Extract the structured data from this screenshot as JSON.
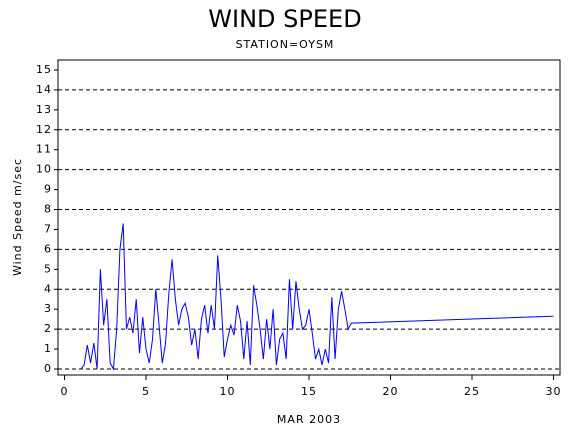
{
  "chart_data": {
    "type": "line",
    "title": "WIND SPEED",
    "subtitle": "STATION=OYSM",
    "y_label": "Wind Speed m/sec",
    "x_label": "MAR 2003",
    "xlim": [
      -0.4,
      30.4
    ],
    "xticks": [
      0,
      5,
      10,
      15,
      20,
      25,
      30
    ],
    "ylim": [
      -0.3,
      15.5
    ],
    "yticks": [
      0,
      1,
      2,
      3,
      4,
      5,
      6,
      7,
      8,
      9,
      10,
      11,
      12,
      13,
      14,
      15
    ],
    "grid": true,
    "x": [
      1.0,
      1.2,
      1.4,
      1.6,
      1.8,
      2.0,
      2.2,
      2.4,
      2.6,
      2.8,
      3.0,
      3.2,
      3.4,
      3.6,
      3.8,
      4.0,
      4.2,
      4.4,
      4.6,
      4.8,
      5.0,
      5.2,
      5.4,
      5.6,
      5.8,
      6.0,
      6.2,
      6.4,
      6.6,
      6.8,
      7.0,
      7.2,
      7.4,
      7.6,
      7.8,
      8.0,
      8.2,
      8.4,
      8.6,
      8.8,
      9.0,
      9.2,
      9.4,
      9.6,
      9.8,
      10.0,
      10.2,
      10.4,
      10.6,
      10.8,
      11.0,
      11.2,
      11.4,
      11.6,
      11.8,
      12.0,
      12.2,
      12.4,
      12.6,
      12.8,
      13.0,
      13.2,
      13.4,
      13.6,
      13.8,
      14.0,
      14.2,
      14.4,
      14.6,
      14.8,
      15.0,
      15.2,
      15.4,
      15.6,
      15.8,
      16.0,
      16.2,
      16.4,
      16.6,
      16.8,
      17.0,
      17.2,
      17.4,
      17.6,
      30
    ],
    "series": [
      {
        "color": "#0000ff",
        "values": [
          0,
          0.2,
          1.2,
          0.3,
          1.3,
          0,
          5.0,
          2.2,
          3.5,
          0.3,
          0,
          2.0,
          6.0,
          7.3,
          2.0,
          2.6,
          1.8,
          3.5,
          0.8,
          2.6,
          1.0,
          0.3,
          1.5,
          4.0,
          2.2,
          0.3,
          1.3,
          3.8,
          5.5,
          3.5,
          2.2,
          3.0,
          3.3,
          2.6,
          1.2,
          2.0,
          0.5,
          2.5,
          3.2,
          1.8,
          3.2,
          2.0,
          5.7,
          3.5,
          0.6,
          1.5,
          2.2,
          1.7,
          3.2,
          2.4,
          0.5,
          2.4,
          0.2,
          4.2,
          3.2,
          2.0,
          0.5,
          2.5,
          1.0,
          3.0,
          0.2,
          1.5,
          1.8,
          0.5,
          4.5,
          2.0,
          4.4,
          3.0,
          2.0,
          2.2,
          3.0,
          1.8,
          0.5,
          1.0,
          0.2,
          1.0,
          0.3,
          3.6,
          0.5,
          3.0,
          3.9,
          3.0,
          2.0,
          2.3,
          2.65
        ]
      }
    ]
  }
}
